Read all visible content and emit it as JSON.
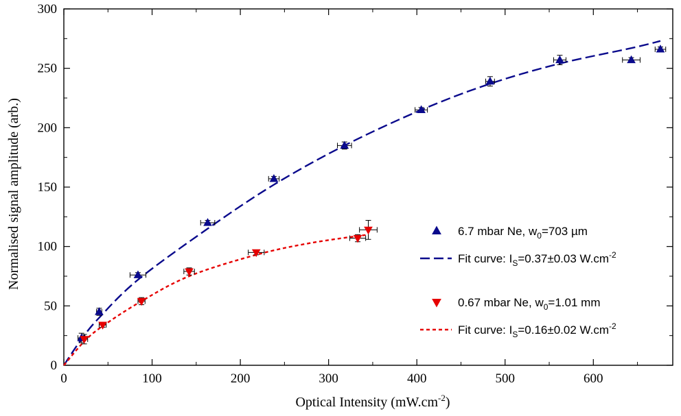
{
  "chart_data": {
    "type": "scatter",
    "xlabel": "Optical Intensity (mW.cm",
    "xlabel_sup": "-2",
    "xlabel_tail": ")",
    "ylabel": "Normalised signal amplitude (arb.)",
    "xlim": [
      0,
      690
    ],
    "ylim": [
      0,
      300
    ],
    "xticks": [
      0,
      100,
      200,
      300,
      400,
      500,
      600
    ],
    "yticks": [
      0,
      50,
      100,
      150,
      200,
      250,
      300
    ],
    "grid": false,
    "legend_position": "right-center",
    "series": [
      {
        "key": "ne67",
        "kind": "points",
        "marker": "triangle-up",
        "color": "#0a0a8c",
        "label_main": "6.7 mbar Ne, w",
        "label_sub": "0",
        "label_tail": "=703 µm",
        "x": [
          20,
          40,
          84,
          163,
          238,
          318,
          405,
          483,
          562,
          643,
          676
        ],
        "y": [
          23,
          45,
          76,
          120,
          157,
          185,
          215,
          239,
          257,
          257,
          266
        ],
        "xerr": [
          4,
          3,
          9,
          8,
          6,
          8,
          7,
          5,
          7,
          10,
          6
        ],
        "yerr": [
          4,
          3,
          2,
          2,
          2,
          3,
          2,
          4,
          4,
          2,
          2
        ]
      },
      {
        "key": "ne067",
        "kind": "points",
        "marker": "triangle-down",
        "color": "#e60000",
        "label_main": "0.67 mbar Ne, w",
        "label_sub": "0",
        "label_tail": "=1.01 mm",
        "x": [
          23,
          44,
          88,
          142,
          218,
          333,
          345
        ],
        "y": [
          22,
          34,
          54,
          79,
          95,
          107,
          114
        ],
        "xerr": [
          4,
          4,
          4,
          6,
          9,
          9,
          10
        ],
        "yerr": [
          4,
          2,
          3,
          3,
          2,
          3,
          8
        ]
      },
      {
        "key": "fit67",
        "kind": "fit",
        "color": "#0a0a8c",
        "dash": "14,6",
        "label_main": "Fit curve: I",
        "label_sub": "S",
        "label_tail": "=0.37±0.03 W.cm",
        "label_sup": "-2",
        "x": [
          0,
          20,
          40,
          84,
          163,
          238,
          318,
          405,
          483,
          562,
          643,
          676
        ],
        "y": [
          0,
          22,
          40,
          72,
          115,
          152,
          185,
          215,
          237,
          254,
          267,
          273
        ]
      },
      {
        "key": "fit016",
        "kind": "fit",
        "color": "#e60000",
        "dash": "5,4",
        "label_main": "Fit curve: I",
        "label_sub": "S",
        "label_tail": "=0.16±0.02 W.cm",
        "label_sup": "-2",
        "x": [
          0,
          23,
          44,
          88,
          142,
          218,
          280,
          345
        ],
        "y": [
          0,
          20,
          33,
          54,
          75,
          93,
          103,
          110
        ]
      }
    ]
  }
}
